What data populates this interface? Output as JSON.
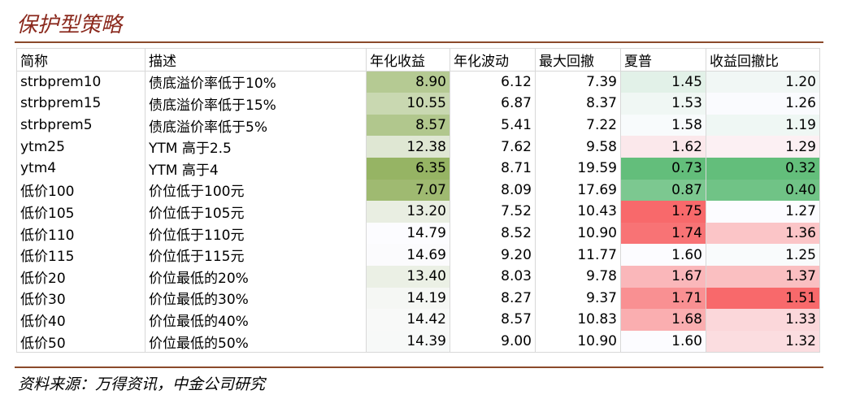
{
  "header": {
    "title": "保护型策略"
  },
  "table": {
    "columns": [
      "简称",
      "描述",
      "年化收益",
      "年化波动",
      "最大回撤",
      "夏普",
      "收益回撤比"
    ],
    "rows": [
      [
        "strbprem10",
        "债底溢价率低于10%",
        "8.90",
        "6.12",
        "7.39",
        "1.45",
        "1.20"
      ],
      [
        "strbprem15",
        "债底溢价率低于15%",
        "10.55",
        "6.87",
        "8.37",
        "1.53",
        "1.26"
      ],
      [
        "strbprem5",
        "债底溢价率低于5%",
        "8.57",
        "5.41",
        "7.22",
        "1.58",
        "1.19"
      ],
      [
        "ytm25",
        "YTM 高于2.5",
        "12.38",
        "7.62",
        "9.58",
        "1.62",
        "1.29"
      ],
      [
        "ytm4",
        "YTM 高于4",
        "6.35",
        "8.71",
        "19.59",
        "0.73",
        "0.32"
      ],
      [
        "低价100",
        "价位低于100元",
        "7.07",
        "8.09",
        "17.69",
        "0.87",
        "0.40"
      ],
      [
        "低价105",
        "价位低于105元",
        "13.20",
        "7.52",
        "10.43",
        "1.75",
        "1.27"
      ],
      [
        "低价110",
        "价位低于110元",
        "14.79",
        "8.52",
        "10.90",
        "1.74",
        "1.36"
      ],
      [
        "低价115",
        "价位低于115元",
        "14.69",
        "9.20",
        "11.77",
        "1.60",
        "1.25"
      ],
      [
        "低价20",
        "价位最低的20%",
        "13.40",
        "8.03",
        "9.78",
        "1.67",
        "1.37"
      ],
      [
        "低价30",
        "价位最低的30%",
        "14.19",
        "8.27",
        "9.37",
        "1.71",
        "1.51"
      ],
      [
        "低价40",
        "价位最低的40%",
        "14.42",
        "8.57",
        "10.83",
        "1.68",
        "1.33"
      ],
      [
        "低价50",
        "价位最低的50%",
        "14.39",
        "9.00",
        "10.90",
        "1.60",
        "1.32"
      ]
    ]
  },
  "footer": {
    "source": "资料来源：万得资讯，中金公司研究"
  }
}
